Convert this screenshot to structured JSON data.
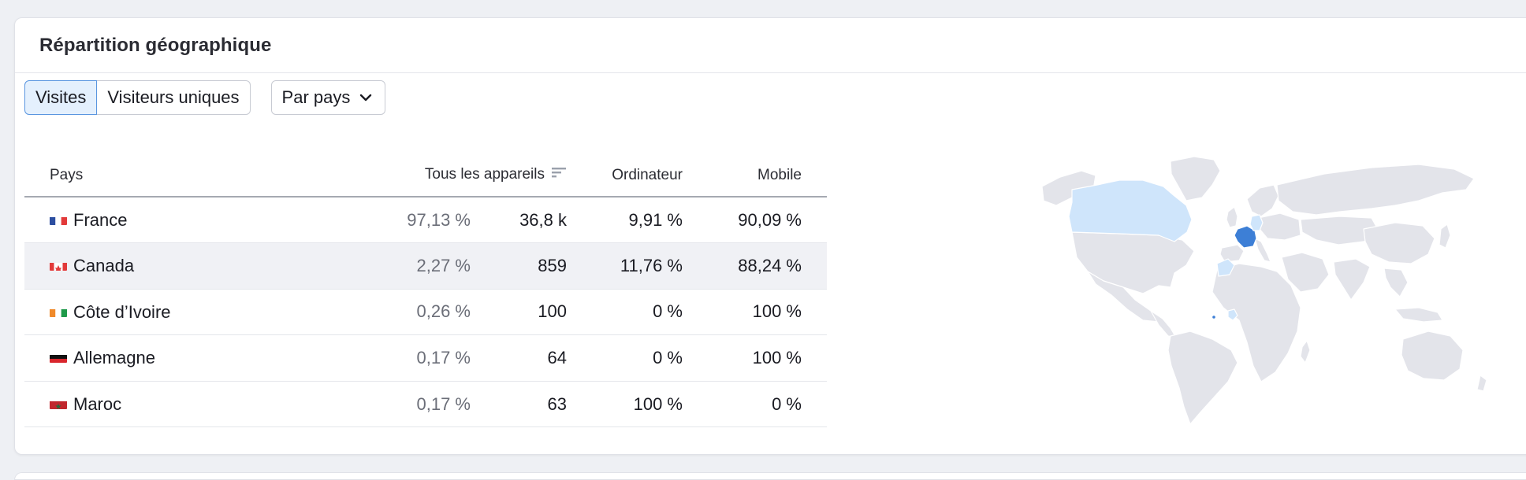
{
  "card": {
    "title": "Répartition géographique"
  },
  "toolbar": {
    "tabs": [
      {
        "label": "Visites",
        "active": true
      },
      {
        "label": "Visiteurs uniques",
        "active": false
      }
    ],
    "grouping": {
      "value": "Par pays",
      "icon": "chevron-down-icon"
    }
  },
  "table": {
    "headers": {
      "country": "Pays",
      "all_devices": "Tous les appareils",
      "desktop": "Ordinateur",
      "mobile": "Mobile"
    },
    "sort_icon": "sort-descending-icon",
    "rows": [
      {
        "flag": "flag-fr-icon",
        "country": "France",
        "share": "97,13 %",
        "count": "36,8 k",
        "desktop": "9,91 %",
        "mobile": "90,09 %"
      },
      {
        "flag": "flag-ca-icon",
        "country": "Canada",
        "share": "2,27 %",
        "count": "859",
        "desktop": "11,76 %",
        "mobile": "88,24 %"
      },
      {
        "flag": "flag-ci-icon",
        "country": "Côte d’Ivoire",
        "share": "0,26 %",
        "count": "100",
        "desktop": "0 %",
        "mobile": "100 %"
      },
      {
        "flag": "flag-de-icon",
        "country": "Allemagne",
        "share": "0,17 %",
        "count": "64",
        "desktop": "0 %",
        "mobile": "100 %"
      },
      {
        "flag": "flag-ma-icon",
        "country": "Maroc",
        "share": "0,17 %",
        "count": "63",
        "desktop": "100 %",
        "mobile": "0 %"
      }
    ]
  },
  "map": {
    "colors": {
      "land": "#e3e4ea",
      "border": "#ffffff",
      "highlight_high": "#3d7fd6",
      "highlight_low": "#cfe5fb"
    }
  }
}
